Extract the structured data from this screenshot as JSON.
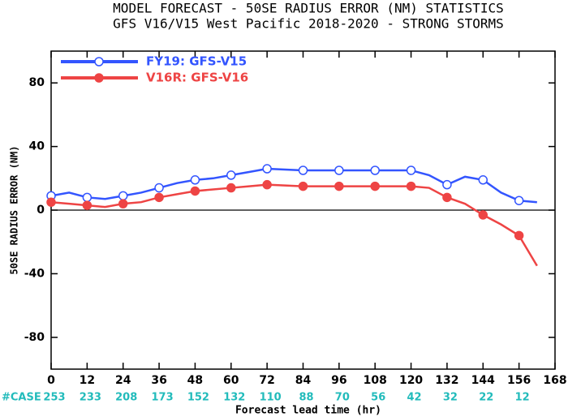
{
  "chart_data": {
    "type": "line",
    "title": "MODEL FORECAST - 50SE RADIUS ERROR (NM) STATISTICS",
    "subtitle": "GFS V16/V15 West Pacific 2018-2020 - STRONG STORMS",
    "xlabel": "Forecast lead time (hr)",
    "ylabel": "50SE RADIUS ERROR (NM)",
    "x": [
      0,
      6,
      12,
      18,
      24,
      30,
      36,
      42,
      48,
      54,
      60,
      66,
      72,
      78,
      84,
      90,
      96,
      102,
      108,
      114,
      120,
      126,
      132,
      138,
      144,
      150,
      156,
      162
    ],
    "series": [
      {
        "name": "FY19: GFS-V15",
        "color": "#3355ff",
        "marker": "open",
        "values": [
          9,
          11,
          8,
          7,
          9,
          11,
          14,
          17,
          19,
          20,
          22,
          24,
          26,
          25.5,
          25,
          25,
          25,
          25,
          25,
          25,
          25,
          22,
          16,
          21,
          19,
          11,
          6,
          5
        ]
      },
      {
        "name": "V16R: GFS-V16",
        "color": "#ee4444",
        "marker": "filled",
        "values": [
          5,
          4,
          3,
          2,
          4,
          5,
          8,
          10,
          12,
          13,
          14,
          15,
          16,
          15.5,
          15,
          15,
          15,
          15,
          15,
          15,
          15,
          14,
          8,
          4,
          -3,
          -9,
          -16,
          -35
        ]
      }
    ],
    "xlim": [
      0,
      168
    ],
    "xticks": [
      0,
      12,
      24,
      36,
      48,
      60,
      72,
      84,
      96,
      108,
      120,
      132,
      144,
      156,
      168
    ],
    "ylim": [
      -100,
      100
    ],
    "yticks": [
      -80,
      -40,
      0,
      40,
      80
    ],
    "legend": "upper left",
    "case_label": "#CASE",
    "case_counts": [
      253,
      233,
      208,
      173,
      152,
      132,
      110,
      88,
      70,
      56,
      42,
      32,
      22,
      12
    ]
  }
}
